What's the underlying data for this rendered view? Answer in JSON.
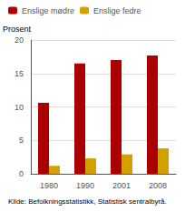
{
  "chart_data": {
    "type": "bar",
    "ylabel": "Prosent",
    "annotations": [
      "Kilde: Befolkningsstatistikk, Statistisk sentralbyrå."
    ],
    "categories": [
      "1980",
      "1990",
      "2001",
      "2008"
    ],
    "series": [
      {
        "name": "Enslige mødre",
        "color": "#aa0000",
        "values": [
          10.6,
          16.5,
          17.0,
          17.7
        ]
      },
      {
        "name": "Enslige fedre",
        "color": "#d4a000",
        "values": [
          1.2,
          2.3,
          2.9,
          3.8
        ]
      }
    ],
    "ylim": [
      0,
      20
    ],
    "yticks": [
      0,
      5,
      10,
      15,
      20
    ],
    "grid": true,
    "legend": "upper left"
  }
}
